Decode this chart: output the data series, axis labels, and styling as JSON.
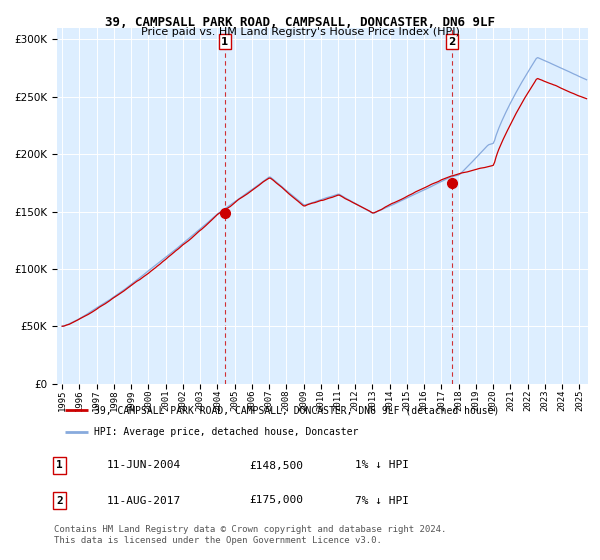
{
  "title": "39, CAMPSALL PARK ROAD, CAMPSALL, DONCASTER, DN6 9LF",
  "subtitle": "Price paid vs. HM Land Registry's House Price Index (HPI)",
  "bg_color": "#ddeeff",
  "red_color": "#cc0000",
  "blue_color": "#88aadd",
  "marker1_year": 2004.44,
  "marker1_price": 148500,
  "marker2_year": 2017.61,
  "marker2_price": 175000,
  "legend_line1": "39, CAMPSALL PARK ROAD, CAMPSALL, DONCASTER, DN6 9LF (detached house)",
  "legend_line2": "HPI: Average price, detached house, Doncaster",
  "annot1_date": "11-JUN-2004",
  "annot1_price": "£148,500",
  "annot1_hpi": "1% ↓ HPI",
  "annot2_date": "11-AUG-2017",
  "annot2_price": "£175,000",
  "annot2_hpi": "7% ↓ HPI",
  "footer": "Contains HM Land Registry data © Crown copyright and database right 2024.\nThis data is licensed under the Open Government Licence v3.0.",
  "ylim_max": 310000,
  "xlim_start": 1994.7,
  "xlim_end": 2025.5
}
